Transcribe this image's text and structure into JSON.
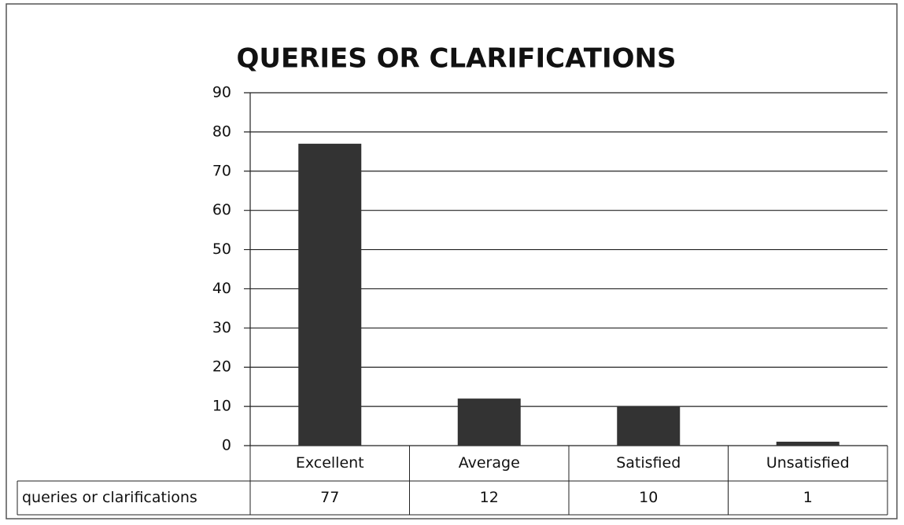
{
  "chart_data": {
    "type": "bar",
    "title": "QUERIES OR CLARIFICATIONS",
    "categories": [
      "Excellent",
      "Average",
      "Satisfied",
      "Unsatisfied"
    ],
    "series": [
      {
        "name": "queries or clarifications",
        "color": "#333333",
        "values": [
          77,
          12,
          10,
          1
        ]
      }
    ],
    "ylim": [
      0,
      90
    ],
    "yticks": [
      0,
      10,
      20,
      30,
      40,
      50,
      60,
      70,
      80,
      90
    ],
    "grid": true,
    "data_table": true
  }
}
